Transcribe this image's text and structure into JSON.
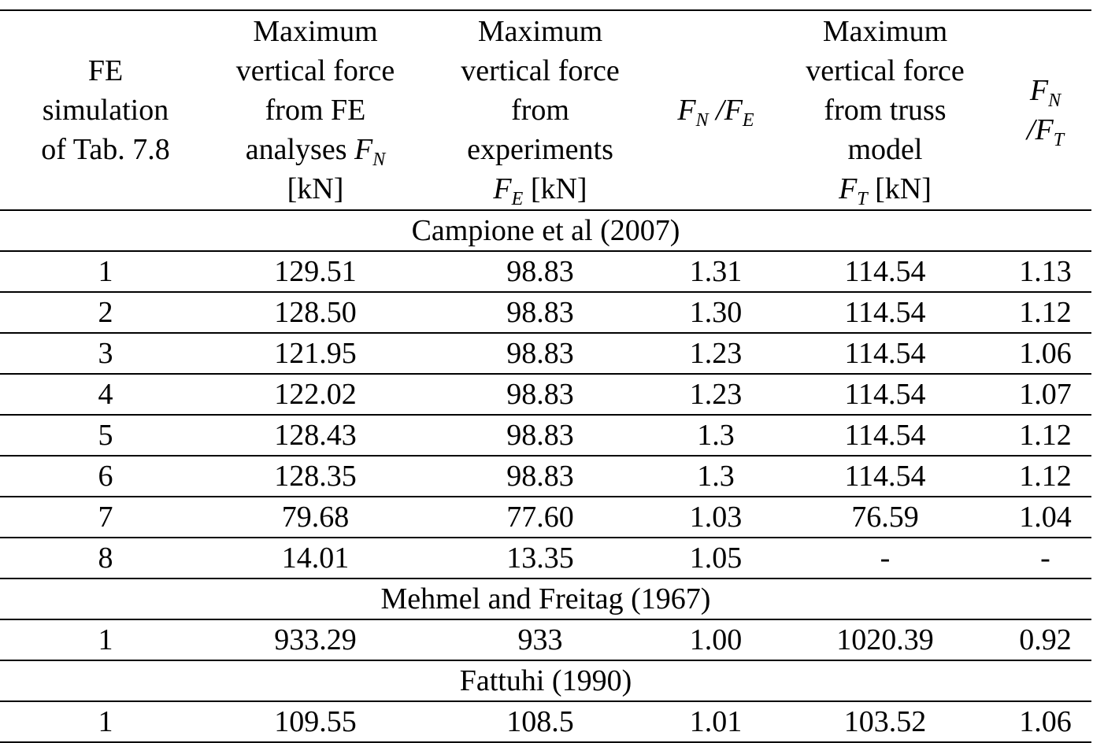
{
  "header": {
    "col1": {
      "line1": "FE",
      "line2": "simulation",
      "line3": "of Tab. 7.8"
    },
    "col2": {
      "line1": "Maximum",
      "line2": "vertical force",
      "line3": "from FE",
      "line4_text": "analyses ",
      "line4_var": "F",
      "line4_sub": "N",
      "line5": "[kN]"
    },
    "col3": {
      "line1": "Maximum",
      "line2": "vertical force",
      "line3": "from",
      "line4": "experiments",
      "line5_var": "F",
      "line5_sub": "E",
      "line5_unit": " [kN]"
    },
    "col4": {
      "var1": "F",
      "sub1": "N",
      "slash": " /",
      "var2": "F",
      "sub2": "E"
    },
    "col5": {
      "line1": "Maximum",
      "line2": "vertical force",
      "line3": "from truss",
      "line4": "model",
      "line5_var": "F",
      "line5_sub": "T",
      "line5_unit": " [kN]"
    },
    "col6": {
      "var1": "F",
      "sub1": "N",
      "slash": "/",
      "var2": "F",
      "sub2": "T"
    }
  },
  "groups": [
    {
      "title": "Campione et al (2007)",
      "rows": [
        [
          "1",
          "129.51",
          "98.83",
          "1.31",
          "114.54",
          "1.13"
        ],
        [
          "2",
          "128.50",
          "98.83",
          "1.30",
          "114.54",
          "1.12"
        ],
        [
          "3",
          "121.95",
          "98.83",
          "1.23",
          "114.54",
          "1.06"
        ],
        [
          "4",
          "122.02",
          "98.83",
          "1.23",
          "114.54",
          "1.07"
        ],
        [
          "5",
          "128.43",
          "98.83",
          "1.3",
          "114.54",
          "1.12"
        ],
        [
          "6",
          "128.35",
          "98.83",
          "1.3",
          "114.54",
          "1.12"
        ],
        [
          "7",
          "79.68",
          "77.60",
          "1.03",
          "76.59",
          "1.04"
        ],
        [
          "8",
          "14.01",
          "13.35",
          "1.05",
          "-",
          "-"
        ]
      ]
    },
    {
      "title": "Mehmel and Freitag (1967)",
      "rows": [
        [
          "1",
          "933.29",
          "933",
          "1.00",
          "1020.39",
          "0.92"
        ]
      ]
    },
    {
      "title": "Fattuhi (1990)",
      "rows": [
        [
          "1",
          "109.55",
          "108.5",
          "1.01",
          "103.52",
          "1.06"
        ]
      ]
    }
  ]
}
